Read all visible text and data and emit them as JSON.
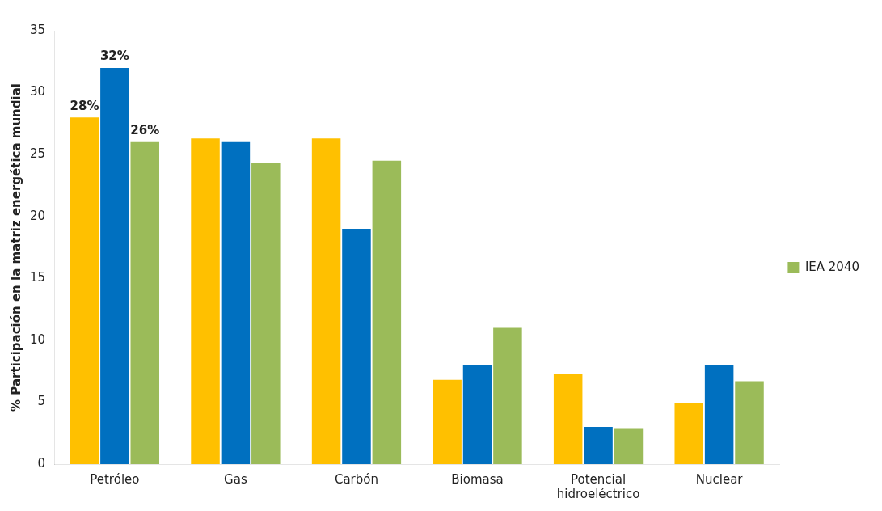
{
  "chart_data": {
    "type": "bar",
    "ylabel": "% Participación en la matriz energética mundial",
    "categories": [
      "Petróleo",
      "Gas",
      "Carbón",
      "Biomasa",
      "Potencial hidroeléctrico",
      "Nuclear"
    ],
    "series": [
      {
        "color": "#ffc000",
        "values": [
          28,
          26.3,
          26.3,
          6.8,
          7.3,
          4.9
        ],
        "value_labels": [
          "28%",
          null,
          null,
          null,
          null,
          null
        ]
      },
      {
        "color": "#0070c0",
        "values": [
          32,
          26,
          19,
          8,
          3,
          8
        ],
        "value_labels": [
          "32%",
          null,
          null,
          null,
          null,
          null
        ]
      },
      {
        "name": "IEA 2040",
        "color": "#9bbb59",
        "values": [
          26,
          24.3,
          24.5,
          11,
          2.9,
          6.7
        ],
        "value_labels": [
          "26%",
          null,
          null,
          null,
          null,
          null
        ]
      }
    ],
    "ylim": [
      0,
      35
    ],
    "yticks": [
      0,
      5,
      10,
      15,
      20,
      25,
      30,
      35
    ],
    "legend": "right"
  }
}
